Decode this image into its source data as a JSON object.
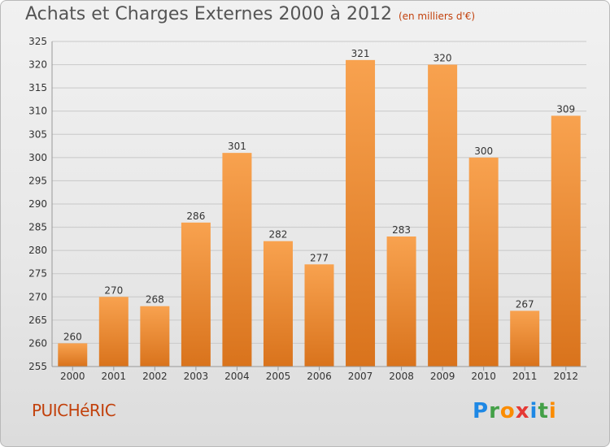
{
  "header": {
    "title": "Achats et Charges Externes 2000 à 2012",
    "subtitle": "(en milliers d'€)"
  },
  "footer": {
    "commune": "PUICHéRIC",
    "logo": {
      "letters": [
        "P",
        "r",
        "o",
        "x",
        "i",
        "t",
        "i"
      ],
      "colors": [
        "#1e88e5",
        "#43a047",
        "#fb8c00",
        "#e53935",
        "#1e88e5",
        "#43a047",
        "#fb8c00"
      ]
    }
  },
  "colors": {
    "bar_light": "#f8a24f",
    "bar_dark": "#d9731c",
    "grid": "#c8c8c8",
    "accent": "#c2410c"
  },
  "chart_data": {
    "type": "bar",
    "categories": [
      "2000",
      "2001",
      "2002",
      "2003",
      "2004",
      "2005",
      "2006",
      "2007",
      "2008",
      "2009",
      "2010",
      "2011",
      "2012"
    ],
    "values": [
      260,
      270,
      268,
      286,
      301,
      282,
      277,
      321,
      283,
      320,
      300,
      267,
      309
    ],
    "title": "Achats et Charges Externes 2000 à 2012",
    "ylim": [
      255,
      325
    ],
    "yticks": [
      255,
      260,
      265,
      270,
      275,
      280,
      285,
      290,
      295,
      300,
      305,
      310,
      315,
      320,
      325
    ],
    "grid": true
  }
}
